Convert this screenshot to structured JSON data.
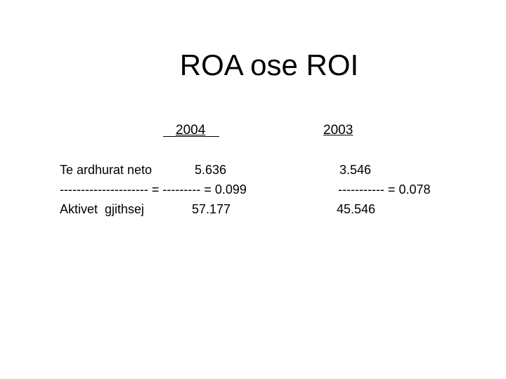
{
  "title": "ROA ose ROI",
  "headers": {
    "year_2004": "2004",
    "year_2003": "2003"
  },
  "rows": [
    {
      "label": "Te ardhurat neto",
      "value_2004": "5.636",
      "value_2003": "3.546"
    },
    {
      "label": "--------------------- = --------- = 0.099",
      "value_2003": "----------- = 0.078"
    },
    {
      "label": "Aktivet  gjithsej",
      "value_2004": "57.177",
      "value_2003": "45.546"
    }
  ]
}
